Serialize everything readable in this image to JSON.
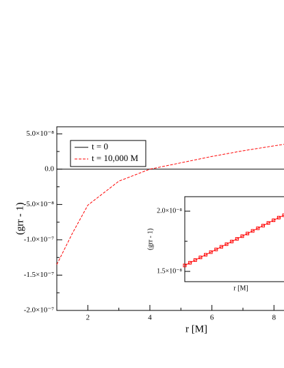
{
  "chart_data": [
    {
      "type": "line",
      "x_label": "r [M]",
      "y_label": "(grr - 1)",
      "xlim": [
        1,
        10
      ],
      "ylim": [
        -2e-07,
        6e-08
      ],
      "xticks": [
        2,
        4,
        6,
        8
      ],
      "yticks": [
        {
          "value": 5e-08,
          "label": "5.0×10⁻⁸"
        },
        {
          "value": 0,
          "label": "0.0"
        },
        {
          "value": -5e-08,
          "label": "-5.0×10⁻⁸"
        },
        {
          "value": -1e-07,
          "label": "-1.0×10⁻⁷"
        },
        {
          "value": -1.5e-07,
          "label": "-1.5×10⁻⁷"
        },
        {
          "value": -2e-07,
          "label": "-2.0×10⁻⁷"
        }
      ],
      "legend": "upper left",
      "series": [
        {
          "name": "t = 0",
          "color": "#000000",
          "dashed": false,
          "x": [
            1,
            10
          ],
          "values": [
            0,
            0
          ]
        },
        {
          "name": "t = 10,000 M",
          "color": "#ff0000",
          "dashed": true,
          "x": [
            1,
            1.5,
            2,
            3,
            4,
            5,
            6,
            7,
            8,
            8.6
          ],
          "values": [
            -1.35e-07,
            -9.1e-08,
            -5.1e-08,
            -1.7e-08,
            0,
            9e-09,
            1.8e-08,
            2.6e-08,
            3.3e-08,
            3.7e-08
          ]
        }
      ]
    },
    {
      "type": "line",
      "inset": true,
      "x_label": "r [M]",
      "y_label": "(grr - 1)",
      "ylim": [
        1.415e-08,
        2.12e-08
      ],
      "yticks": [
        {
          "value": 2e-08,
          "label": "2.0×10⁻⁸"
        },
        {
          "value": 1.5e-08,
          "label": "1.5×10⁻⁸"
        }
      ],
      "series": [
        {
          "color": "#ff0000",
          "markers": true,
          "values": [
            1.55e-08,
            1.572e-08,
            1.594e-08,
            1.616e-08,
            1.638e-08,
            1.66e-08,
            1.682e-08,
            1.704e-08,
            1.726e-08,
            1.748e-08,
            1.77e-08,
            1.792e-08,
            1.814e-08,
            1.836e-08,
            1.858e-08,
            1.88e-08,
            1.902e-08,
            1.924e-08,
            1.946e-08,
            1.966e-08
          ]
        }
      ]
    }
  ]
}
